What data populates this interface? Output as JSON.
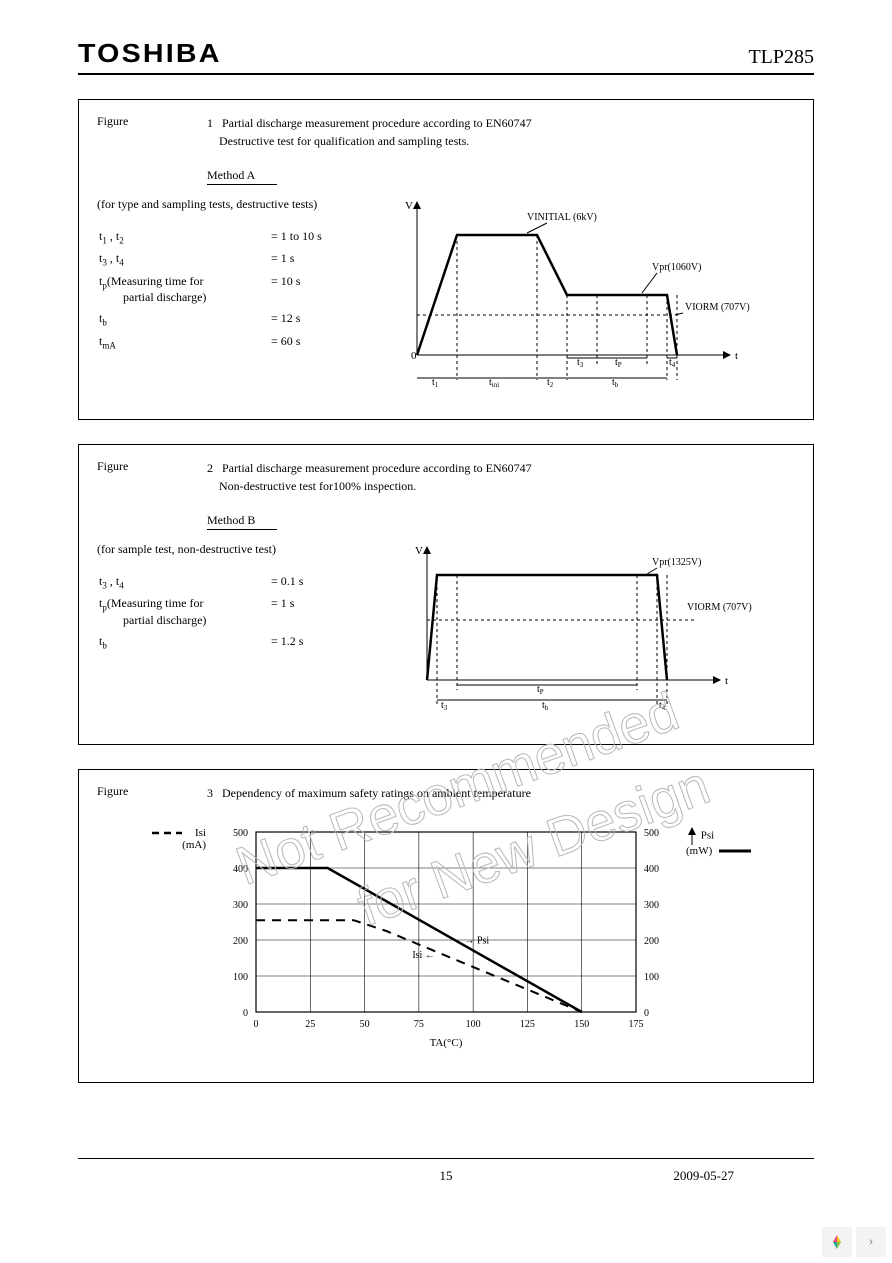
{
  "header": {
    "brand": "TOSHIBA",
    "part": "TLP285"
  },
  "footer": {
    "page": "15",
    "date": "2009-05-27"
  },
  "watermark": {
    "line1": "Not Recommended",
    "line2": "for New Design",
    "color": "#b8b8b8",
    "fontsize": 54,
    "angle": -20
  },
  "fig1": {
    "label": "Figure",
    "num": "1",
    "caption1": "Partial discharge measurement procedure according to EN60747",
    "caption2": "Destructive test for qualification and sampling tests.",
    "method": "Method A",
    "note": "(for type and sampling tests, destructive tests)",
    "params": [
      {
        "k": "t₁ , t₂",
        "v": "= 1 to 10 s"
      },
      {
        "k": "t₃ , t₄",
        "v": "= 1 s"
      },
      {
        "k": "tₚ(Measuring time for\n        partial discharge)",
        "v": "= 10 s"
      },
      {
        "k": "t_b",
        "v": "= 12 s"
      },
      {
        "k": "t_mA",
        "v": "= 60 s"
      }
    ],
    "graph": {
      "yaxis": "V",
      "xaxis": "t",
      "v_initial": "VINITIAL (6kV)",
      "v_pr": "Vpr(1060V)",
      "v_iorm": "VIORM (707V)",
      "xlabels": [
        "t1",
        "tini",
        "t2",
        "t3",
        "tP",
        "tb",
        "t4"
      ]
    }
  },
  "fig2": {
    "label": "Figure",
    "num": "2",
    "caption1": "Partial discharge measurement procedure according to EN60747",
    "caption2": "Non-destructive test for100% inspection.",
    "method": "Method B",
    "note": "(for sample test, non-destructive test)",
    "params": [
      {
        "k": "t₃ , t₄",
        "v": "= 0.1 s"
      },
      {
        "k": "tₚ(Measuring time for\n        partial discharge)",
        "v": "= 1 s"
      },
      {
        "k": "t_b",
        "v": "= 1.2 s"
      }
    ],
    "graph": {
      "yaxis": "V",
      "xaxis": "t",
      "v_pr": "Vpr(1325V)",
      "v_iorm": "VIORM (707V)",
      "xlabels": [
        "t3",
        "tP",
        "tb",
        "t4"
      ]
    }
  },
  "fig3": {
    "label": "Figure",
    "num": "3",
    "caption": "Dependency of maximum safety ratings on ambient temperature",
    "left_legend": "Isi\n(mA)",
    "right_legend": "Psi\n(mW)",
    "xlabel": "TA(°C)",
    "left_arrow": "Isi ←",
    "right_arrow": "→ Psi",
    "yticks_left": [
      0,
      100,
      200,
      300,
      400,
      500
    ],
    "yticks_right": [
      0,
      100,
      200,
      300,
      400,
      500
    ],
    "xticks": [
      0,
      25,
      50,
      75,
      100,
      125,
      150,
      175
    ],
    "chart": {
      "type": "line",
      "xlim": [
        0,
        175
      ],
      "ylim_left": [
        0,
        500
      ],
      "ylim_right": [
        0,
        500
      ],
      "grid_color": "#000000",
      "background_color": "#ffffff",
      "series": [
        {
          "name": "Psi",
          "axis": "right",
          "style": "solid",
          "width": 2.5,
          "color": "#000000",
          "points": [
            [
              0,
              400
            ],
            [
              33,
              400
            ],
            [
              150,
              0
            ]
          ]
        },
        {
          "name": "Isi",
          "axis": "left",
          "style": "dashed",
          "width": 2,
          "color": "#000000",
          "points": [
            [
              0,
              255
            ],
            [
              45,
              255
            ],
            [
              60,
              225
            ],
            [
              150,
              0
            ]
          ]
        }
      ]
    }
  }
}
